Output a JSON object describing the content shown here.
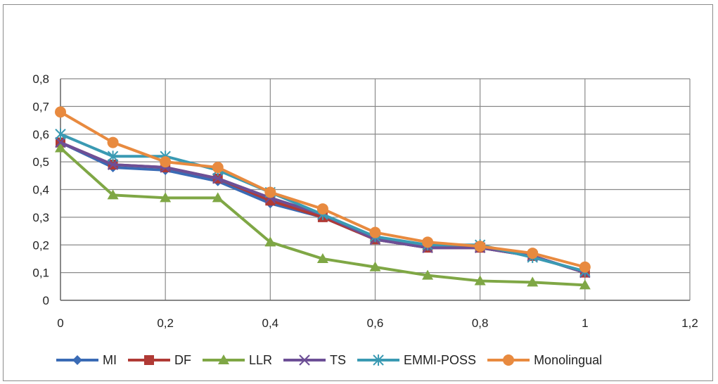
{
  "chart_data": {
    "type": "line",
    "title": "",
    "xlabel": "",
    "ylabel": "",
    "xlim": [
      0,
      1.2
    ],
    "ylim": [
      0,
      0.8
    ],
    "x_ticks": [
      "0",
      "0,2",
      "0,4",
      "0,6",
      "0,8",
      "1",
      "1,2"
    ],
    "y_ticks": [
      "0",
      "0,1",
      "0,2",
      "0,3",
      "0,4",
      "0,5",
      "0,6",
      "0,7",
      "0,8"
    ],
    "grid": true,
    "legend_position": "bottom",
    "x": [
      0,
      0.1,
      0.2,
      0.3,
      0.4,
      0.5,
      0.6,
      0.7,
      0.8,
      0.9,
      1.0
    ],
    "series": [
      {
        "name": "MI",
        "color": "#3a6bb5",
        "marker": "diamond",
        "values": [
          0.57,
          0.48,
          0.47,
          0.43,
          0.35,
          0.3,
          0.22,
          0.19,
          0.19,
          0.16,
          0.1
        ]
      },
      {
        "name": "DF",
        "color": "#b03a35",
        "marker": "square",
        "values": [
          0.57,
          0.49,
          0.48,
          0.44,
          0.36,
          0.3,
          0.22,
          0.19,
          0.19,
          0.16,
          0.1
        ]
      },
      {
        "name": "LLR",
        "color": "#7fa745",
        "marker": "triangle",
        "values": [
          0.55,
          0.38,
          0.37,
          0.37,
          0.21,
          0.15,
          0.12,
          0.09,
          0.07,
          0.065,
          0.055
        ]
      },
      {
        "name": "TS",
        "color": "#6d4f96",
        "marker": "x",
        "values": [
          0.57,
          0.49,
          0.48,
          0.44,
          0.37,
          0.31,
          0.22,
          0.19,
          0.19,
          0.16,
          0.1
        ]
      },
      {
        "name": "EMMI-POSS",
        "color": "#3a9ab3",
        "marker": "star",
        "values": [
          0.6,
          0.52,
          0.52,
          0.47,
          0.39,
          0.31,
          0.23,
          0.2,
          0.2,
          0.155,
          0.105
        ]
      },
      {
        "name": "Monolingual",
        "color": "#e88a3f",
        "marker": "circle",
        "values": [
          0.68,
          0.57,
          0.5,
          0.48,
          0.39,
          0.33,
          0.245,
          0.21,
          0.195,
          0.17,
          0.12
        ]
      }
    ]
  }
}
